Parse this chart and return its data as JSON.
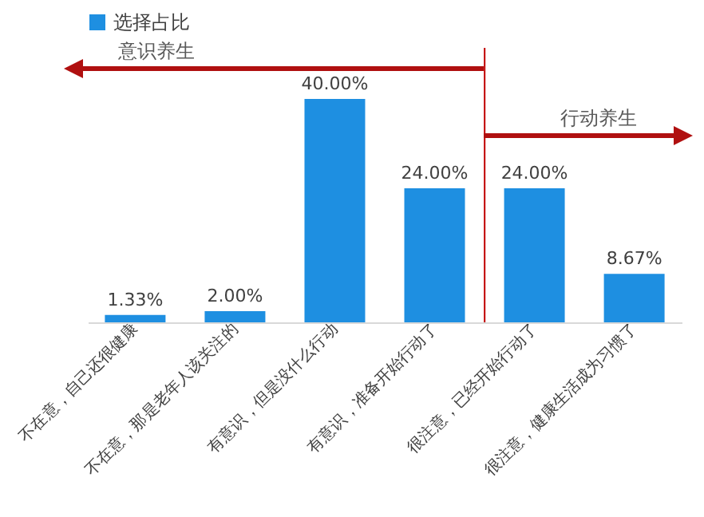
{
  "chart_data": {
    "type": "bar",
    "categories": [
      "不在意，自己还很健康",
      "不在意，那是老年人该关注的",
      "有意识，但是没什么行动",
      "有意识，准备开始行动了",
      "很注意，已经开始行动了",
      "很注意，健康生活成为习惯了"
    ],
    "series": [
      {
        "name": "选择占比",
        "color": "#1e8fe1",
        "values": [
          1.33,
          2.0,
          40.0,
          24.0,
          24.0,
          8.67
        ],
        "value_labels": [
          "1.33%",
          "2.00%",
          "40.00%",
          "24.00%",
          "24.00%",
          "8.67%"
        ]
      }
    ],
    "legend": "top",
    "ref_lines": [
      {
        "axis": "x",
        "value": "很注意，已经开始行动了",
        "color": "#c00000"
      }
    ],
    "annotations": [
      "意识养生",
      "行动养生"
    ]
  }
}
